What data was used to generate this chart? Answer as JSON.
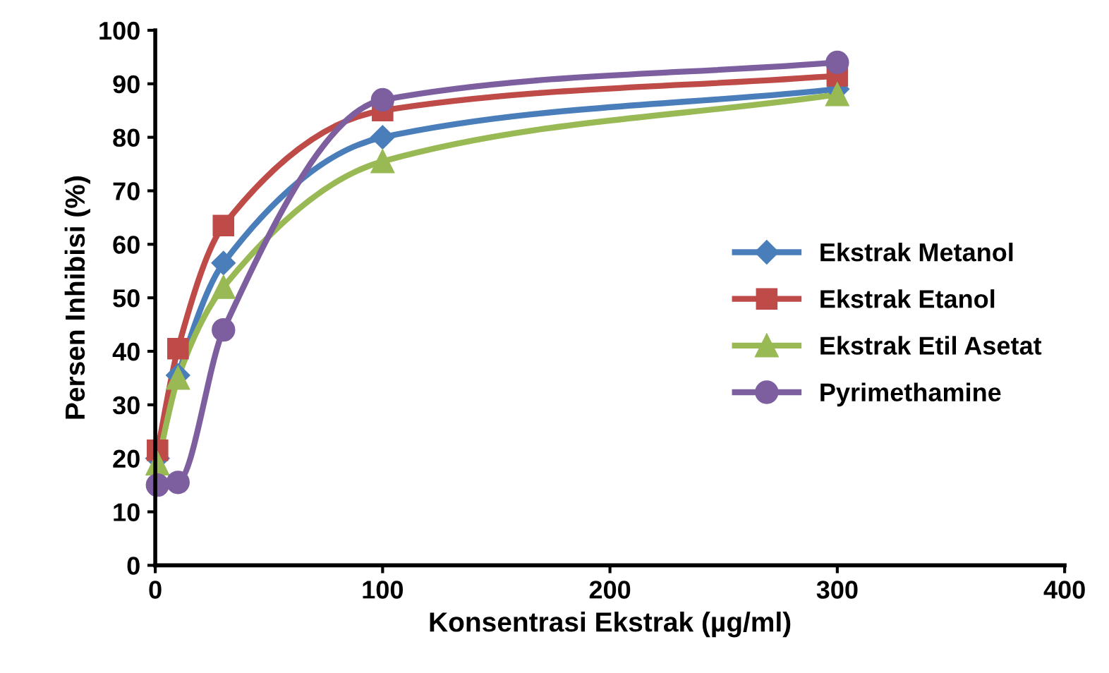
{
  "chart_data": {
    "type": "line",
    "xlabel": "Konsentrasi Ekstrak (µg/ml)",
    "ylabel": "Persen Inhibisi (%)",
    "x": [
      1,
      10,
      30,
      100,
      300
    ],
    "xlim": [
      0,
      400
    ],
    "xticks": [
      0,
      100,
      200,
      300,
      400
    ],
    "ylim": [
      0,
      100
    ],
    "yticks": [
      0,
      10,
      20,
      30,
      40,
      50,
      60,
      70,
      80,
      90,
      100
    ],
    "grid": false,
    "legend": "right",
    "series": [
      {
        "name": "Ekstrak Metanol",
        "color": "#4a7ebb",
        "marker": "diamond",
        "values": [
          20,
          35.5,
          56.5,
          80,
          89
        ]
      },
      {
        "name": "Ekstrak Etanol",
        "color": "#be4b48",
        "marker": "square",
        "values": [
          21.5,
          40.5,
          63.5,
          85,
          91.5
        ]
      },
      {
        "name": "Ekstrak Etil Asetat",
        "color": "#98b954",
        "marker": "triangle",
        "values": [
          19,
          35,
          52,
          75.5,
          88
        ]
      },
      {
        "name": "Pyrimethamine",
        "color": "#7d5fa0",
        "marker": "circle",
        "values": [
          15,
          15.5,
          44,
          87,
          94
        ]
      }
    ]
  }
}
